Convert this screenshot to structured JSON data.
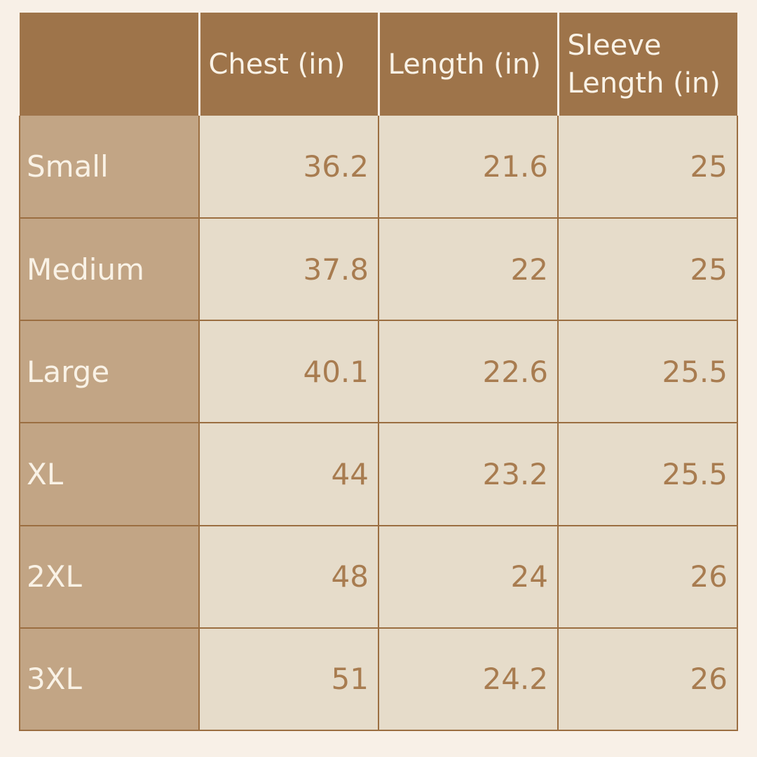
{
  "colors": {
    "page_bg": "#f8f0e7",
    "header_bg": "#9e744a",
    "label_bg": "#c2a585",
    "cell_bg": "#e6dcca",
    "line": "#9b6e41",
    "text_light": "#f9f2e6",
    "text_brown": "#a87c50"
  },
  "table": {
    "corner": "",
    "headers": {
      "chest": "Chest (in)",
      "length": "Length (in)",
      "sleeve": "Sleeve Length (in)"
    },
    "rows": [
      {
        "size": "Small",
        "chest": "36.2",
        "length": "21.6",
        "sleeve": "25"
      },
      {
        "size": "Medium",
        "chest": "37.8",
        "length": "22",
        "sleeve": "25"
      },
      {
        "size": "Large",
        "chest": "40.1",
        "length": "22.6",
        "sleeve": "25.5"
      },
      {
        "size": "XL",
        "chest": "44",
        "length": "23.2",
        "sleeve": "25.5"
      },
      {
        "size": "2XL",
        "chest": "48",
        "length": "24",
        "sleeve": "26"
      },
      {
        "size": "3XL",
        "chest": "51",
        "length": "24.2",
        "sleeve": "26"
      }
    ]
  },
  "chart_data": {
    "type": "table",
    "title": "",
    "columns": [
      "",
      "Chest (in)",
      "Length (in)",
      "Sleeve Length (in)"
    ],
    "rows": [
      [
        "Small",
        36.2,
        21.6,
        25
      ],
      [
        "Medium",
        37.8,
        22,
        25
      ],
      [
        "Large",
        40.1,
        22.6,
        25.5
      ],
      [
        "XL",
        44,
        23.2,
        25.5
      ],
      [
        "2XL",
        48,
        24,
        26
      ],
      [
        "3XL",
        51,
        24.2,
        26
      ]
    ]
  }
}
